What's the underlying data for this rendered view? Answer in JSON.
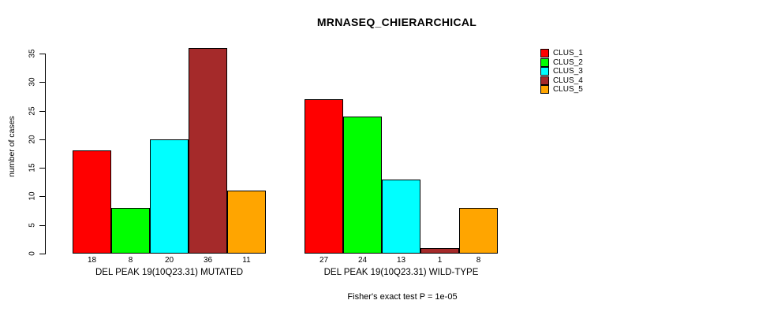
{
  "title": "MRNASEQ_CHIERARCHICAL",
  "footnote": "Fisher's exact test P = 1e-05",
  "chart_data": {
    "type": "bar",
    "title": "MRNASEQ_CHIERARCHICAL",
    "ylabel": "number of cases",
    "xlabel": "",
    "ylim": [
      0,
      35
    ],
    "yticks": [
      0,
      5,
      10,
      15,
      20,
      25,
      30,
      35
    ],
    "grid": false,
    "legend_position": "top-right",
    "series_names": [
      "CLUS_1",
      "CLUS_2",
      "CLUS_3",
      "CLUS_4",
      "CLUS_5"
    ],
    "colors": [
      "#FF0000",
      "#00FF00",
      "#00FFFF",
      "#A52A2A",
      "#FFA500"
    ],
    "categories": [
      "DEL PEAK 19(10Q23.31) MUTATED",
      "DEL PEAK 19(10Q23.31) WILD-TYPE"
    ],
    "groups": [
      {
        "label": "DEL PEAK 19(10Q23.31) MUTATED",
        "values": [
          18,
          8,
          20,
          36,
          11
        ]
      },
      {
        "label": "DEL PEAK 19(10Q23.31) WILD-TYPE",
        "values": [
          27,
          24,
          13,
          1,
          8
        ]
      }
    ],
    "footnote": "Fisher's exact test P = 1e-05"
  }
}
